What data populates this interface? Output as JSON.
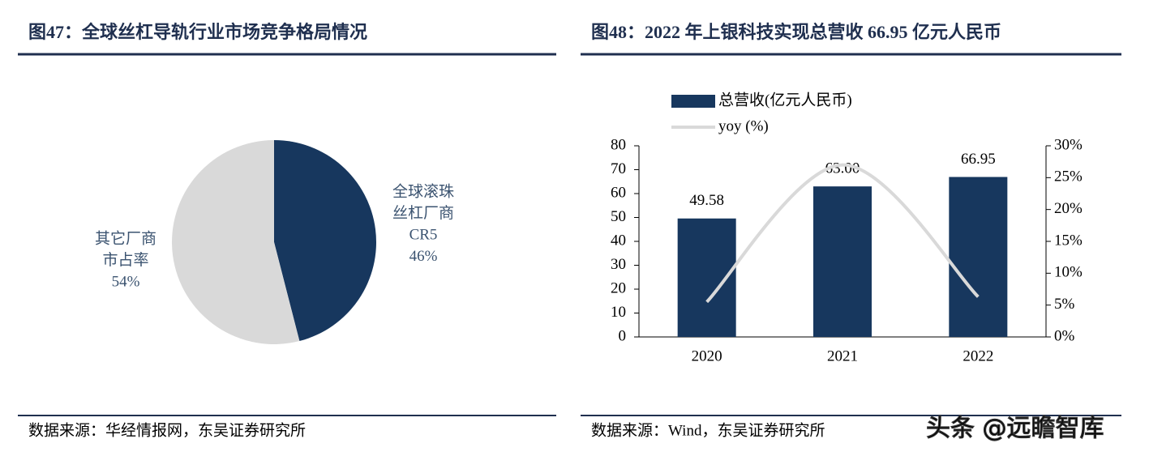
{
  "chart_data": [
    {
      "type": "pie",
      "title": "图47：全球丝杠导轨行业市场竞争格局情况",
      "source": "数据来源：华经情报网，东吴证券研究所",
      "categories": [
        [
          "全球滚珠",
          "丝杠厂商",
          "CR5"
        ],
        [
          "其它厂商",
          "市占率"
        ]
      ],
      "values": [
        46,
        54
      ],
      "value_labels": [
        "46%",
        "54%"
      ],
      "colors": [
        "#17375e",
        "#d9d9d9"
      ]
    },
    {
      "type": "bar_line",
      "title": "图48：2022 年上银科技实现总营收 66.95 亿元人民币",
      "source": "数据来源：Wind，东吴证券研究所",
      "categories": [
        "2020",
        "2021",
        "2022"
      ],
      "series": [
        {
          "name": "总营收(亿元人民币)",
          "color": "#17375e",
          "values": [
            49.58,
            63.0,
            66.95
          ],
          "value_labels": [
            "49.58",
            "63.00",
            "66.95"
          ]
        },
        {
          "name": "yoy (%)",
          "color": "#d9d9d9",
          "axis": "y2",
          "values": [
            5.5,
            27,
            6.3
          ]
        }
      ],
      "ylim": [
        0,
        80
      ],
      "yticks": [
        0,
        10,
        20,
        30,
        40,
        50,
        60,
        70,
        80
      ],
      "y2lim": [
        0,
        30
      ],
      "y2ticks": [
        {
          "value": 0,
          "label": "0%"
        },
        {
          "value": 5,
          "label": "5%"
        },
        {
          "value": 10,
          "label": "10%"
        },
        {
          "value": 15,
          "label": "15%"
        },
        {
          "value": 20,
          "label": "20%"
        },
        {
          "value": 25,
          "label": "25%"
        },
        {
          "value": 30,
          "label": "30%"
        }
      ],
      "legend": "top-left"
    }
  ],
  "watermark": "头条 @远瞻智库"
}
